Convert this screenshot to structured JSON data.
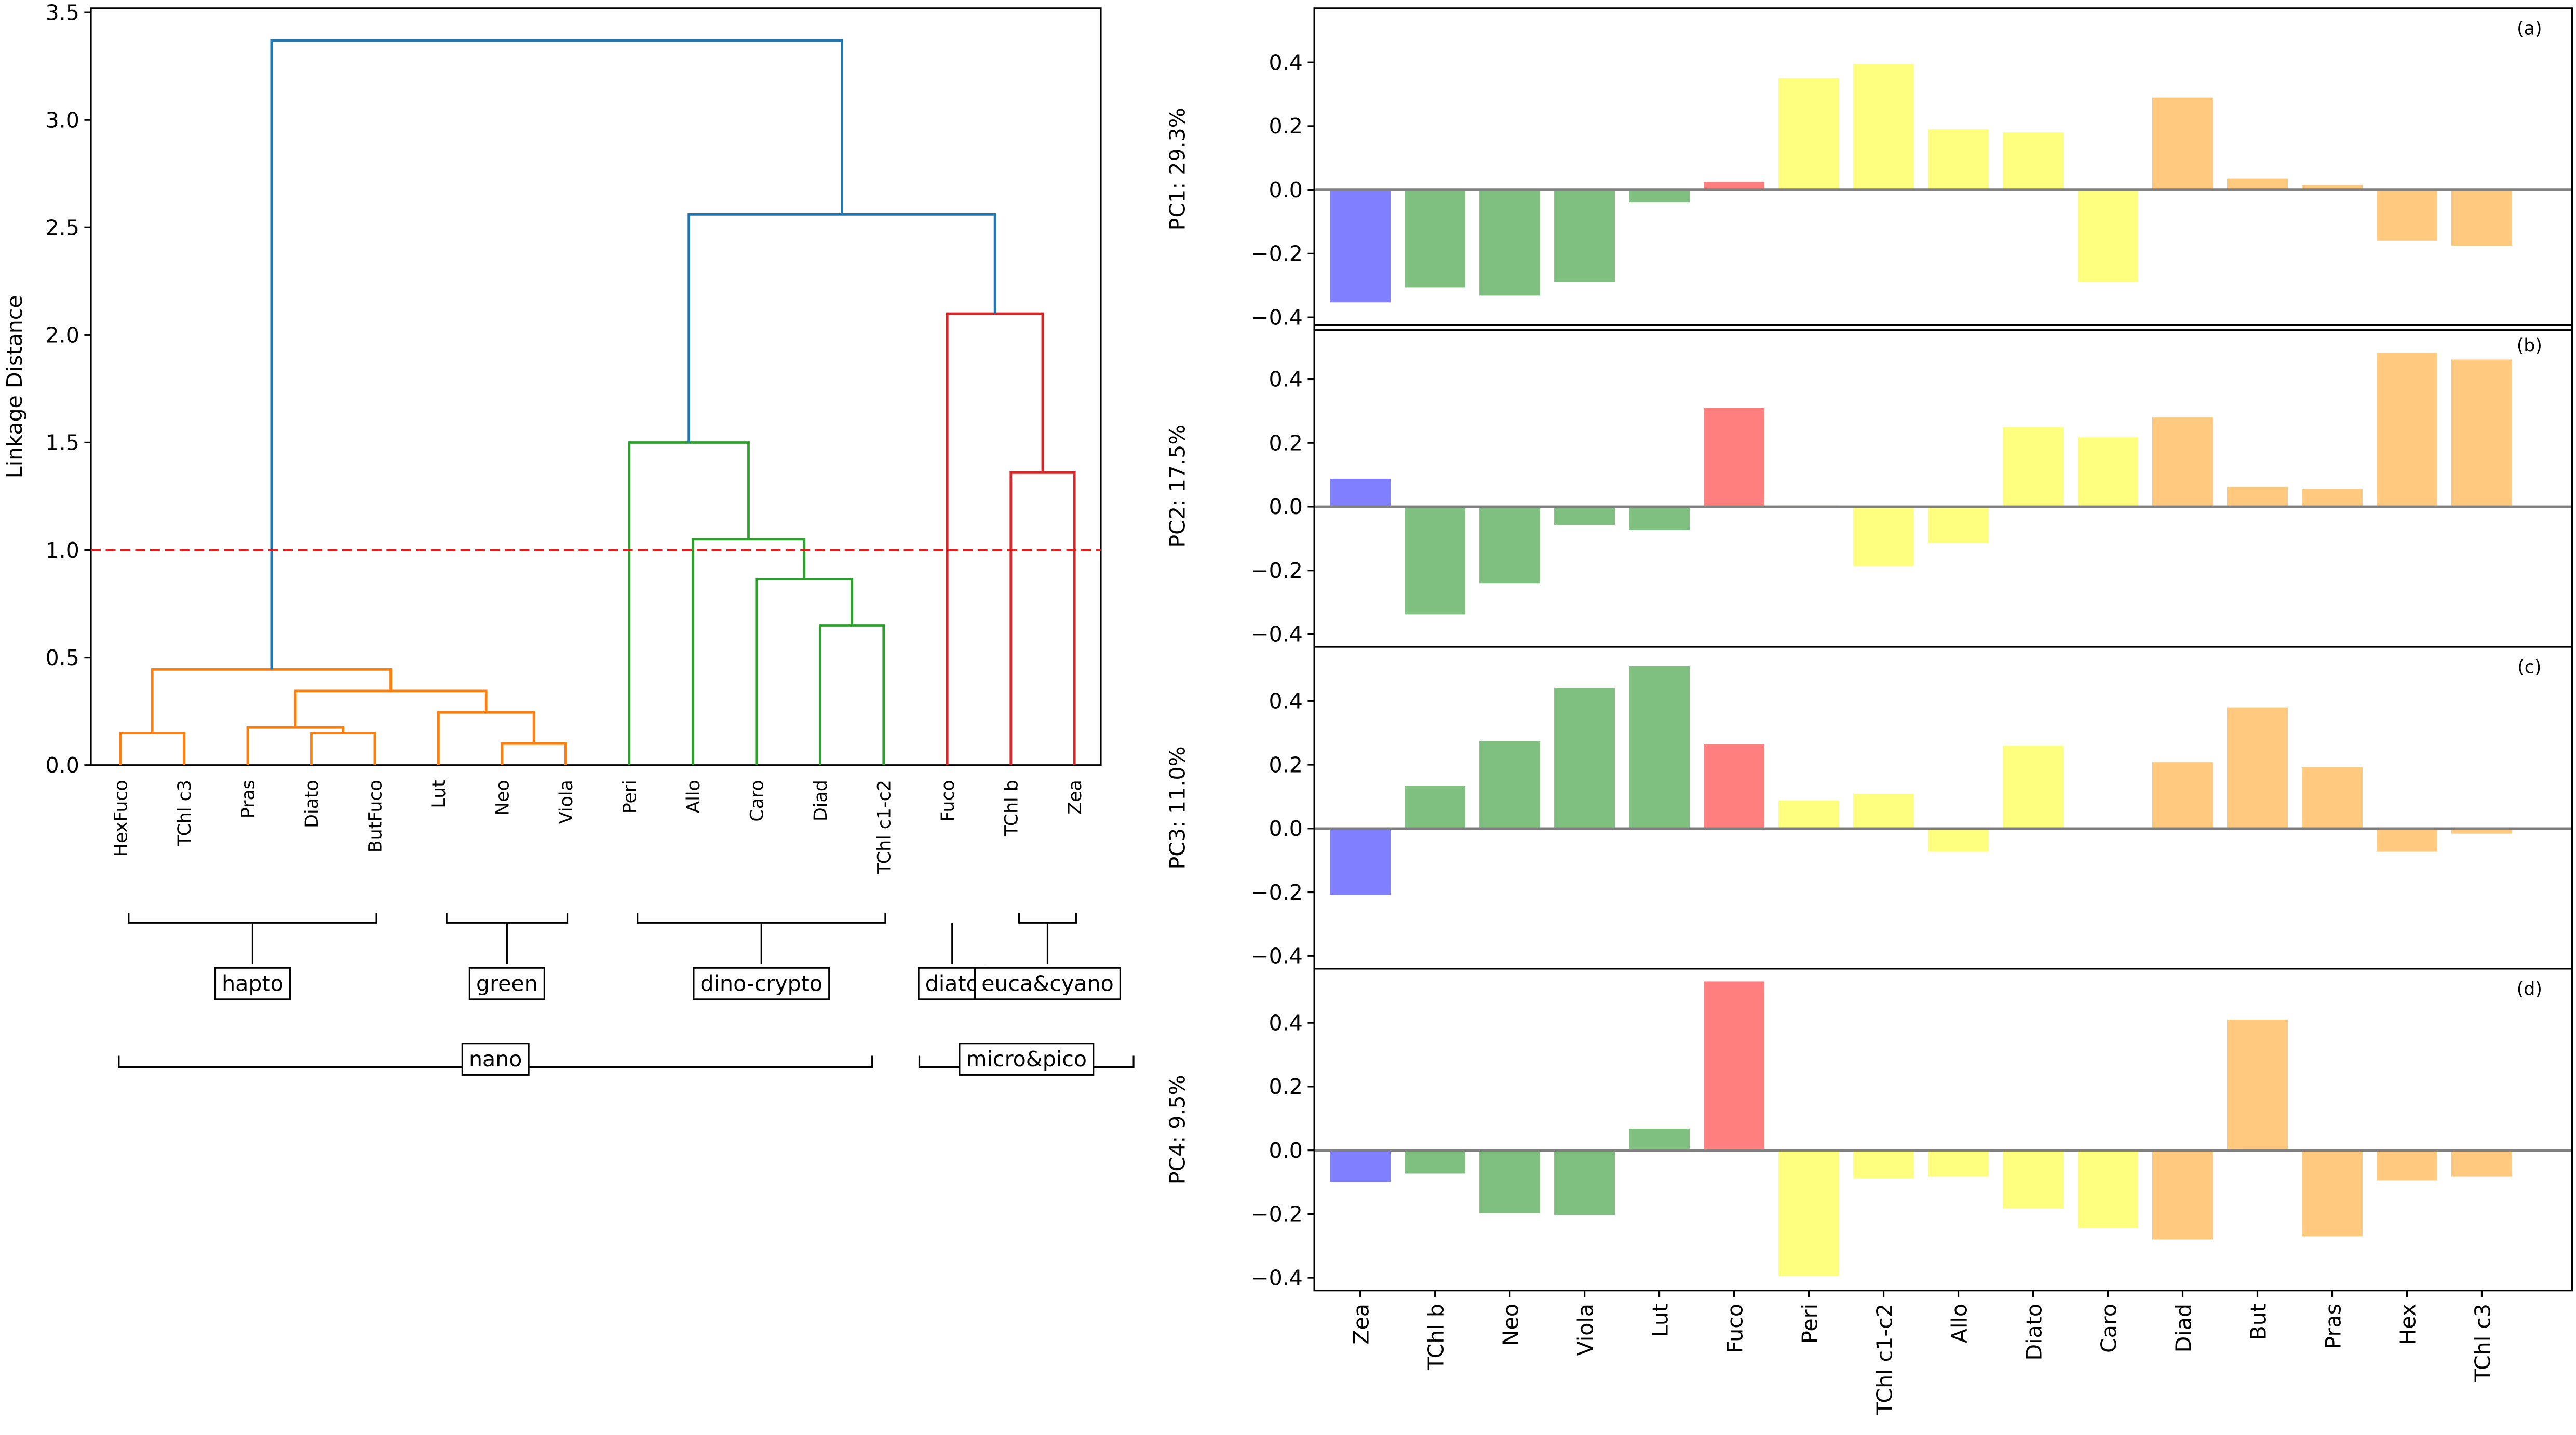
{
  "chart_data": [
    {
      "type": "dendrogram",
      "ylabel": "Linkage Distance",
      "ylim": [
        0,
        3.52
      ],
      "yticks": [
        {
          "value": 0,
          "label": "0.0"
        },
        0.5,
        {
          "value": 1,
          "label": "1.0"
        },
        1.5,
        {
          "value": 2,
          "label": "2.0"
        },
        2.5,
        {
          "value": 3,
          "label": "3.0"
        },
        3.5
      ],
      "leaves": [
        "HexFuco",
        "TChl c3",
        "Pras",
        "Diato",
        "ButFuco",
        "Lut",
        "Neo",
        "Viola",
        "Peri",
        "Allo",
        "Caro",
        "Diad",
        "TChl c1-c2",
        "Fuco",
        "TChl b",
        "Zea"
      ],
      "merges": [
        {
          "left": 0,
          "right": 1,
          "height": 0.15,
          "color": "#ff7f0e"
        },
        {
          "left": 3,
          "right": 4,
          "height": 0.15,
          "color": "#ff7f0e"
        },
        {
          "left": 2,
          "right": 17,
          "height": 0.175,
          "color": "#ff7f0e"
        },
        {
          "left": 6,
          "right": 7,
          "height": 0.1,
          "color": "#ff7f0e"
        },
        {
          "left": 5,
          "right": 19,
          "height": 0.245,
          "color": "#ff7f0e"
        },
        {
          "left": 18,
          "right": 20,
          "height": 0.345,
          "color": "#ff7f0e"
        },
        {
          "left": 16,
          "right": 21,
          "height": 0.445,
          "color": "#ff7f0e"
        },
        {
          "left": 11,
          "right": 12,
          "height": 0.65,
          "color": "#2ca02c"
        },
        {
          "left": 10,
          "right": 23,
          "height": 0.865,
          "color": "#2ca02c"
        },
        {
          "left": 9,
          "right": 24,
          "height": 1.05,
          "color": "#2ca02c"
        },
        {
          "left": 8,
          "right": 25,
          "height": 1.5,
          "color": "#2ca02c"
        },
        {
          "left": 14,
          "right": 15,
          "height": 1.36,
          "color": "#d62728"
        },
        {
          "left": 13,
          "right": 27,
          "height": 2.1,
          "color": "#d62728"
        },
        {
          "left": 26,
          "right": 28,
          "height": 2.56,
          "color": "#1f77b4"
        },
        {
          "left": 22,
          "right": 29,
          "height": 3.37,
          "color": "#1f77b4"
        }
      ],
      "threshold": 1.0,
      "threshold_color": "#e3201f",
      "groups": [
        {
          "label": "hapto",
          "first": 0,
          "last": 4
        },
        {
          "label": "green",
          "first": 5,
          "last": 7
        },
        {
          "label": "dino-crypto",
          "first": 8,
          "last": 12
        },
        {
          "label": "diato",
          "first": 13,
          "last": 13
        },
        {
          "label": "euca&cyano",
          "first": 14,
          "last": 15
        }
      ],
      "supergroups": [
        {
          "label": "nano",
          "first": 0,
          "last": 12
        },
        {
          "label": "micro&pico",
          "first": 13,
          "last": 15
        }
      ]
    },
    {
      "type": "bar",
      "categories": [
        "Zea",
        "TChl b",
        "Neo",
        "Viola",
        "Lut",
        "Fuco",
        "Peri",
        "TChl c1-c2",
        "Allo",
        "Diato",
        "Caro",
        "Diad",
        "But",
        "Pras",
        "Hex",
        "TChl c3"
      ],
      "colors": [
        "#7f7fff",
        "#7fbf7f",
        "#7fbf7f",
        "#7fbf7f",
        "#7fbf7f",
        "#ff7f7f",
        "#ffff7f",
        "#ffff7f",
        "#ffff7f",
        "#ffff7f",
        "#ffff7f",
        "#ffca7f",
        "#ffca7f",
        "#ffca7f",
        "#ffca7f",
        "#ffca7f"
      ],
      "ylim": [
        -0.44,
        0.57
      ],
      "yticks": [
        {
          "value": -0.4,
          "label": "−0.4"
        },
        {
          "value": -0.2,
          "label": "−0.2"
        },
        {
          "value": 0,
          "label": "0.0"
        },
        0.2,
        0.4
      ],
      "panels": [
        {
          "ylabel": "PC1: 29.3%",
          "label": "(a)",
          "values": [
            -0.353,
            -0.306,
            -0.332,
            -0.29,
            -0.04,
            0.025,
            0.35,
            0.395,
            0.19,
            0.18,
            -0.29,
            0.29,
            0.036,
            0.015,
            -0.16,
            -0.175
          ]
        },
        {
          "ylabel": "PC2: 17.5%",
          "label": "(b)",
          "values": [
            0.088,
            -0.338,
            -0.24,
            -0.057,
            -0.073,
            0.31,
            0.005,
            -0.187,
            -0.114,
            0.25,
            0.218,
            0.28,
            0.062,
            0.057,
            0.483,
            0.462
          ]
        },
        {
          "ylabel": "PC3: 11.0%",
          "label": "(c)",
          "values": [
            -0.208,
            0.135,
            0.275,
            0.44,
            0.51,
            0.265,
            0.088,
            0.109,
            -0.073,
            0.26,
            0,
            0.208,
            0.38,
            0.192,
            -0.073,
            -0.016
          ]
        },
        {
          "ylabel": "PC4: 9.5%",
          "label": "(d)",
          "values": [
            -0.099,
            -0.073,
            -0.197,
            -0.203,
            0.068,
            0.53,
            -0.395,
            -0.088,
            -0.083,
            -0.182,
            -0.244,
            -0.28,
            0.41,
            -0.27,
            -0.094,
            -0.083
          ]
        }
      ]
    }
  ]
}
